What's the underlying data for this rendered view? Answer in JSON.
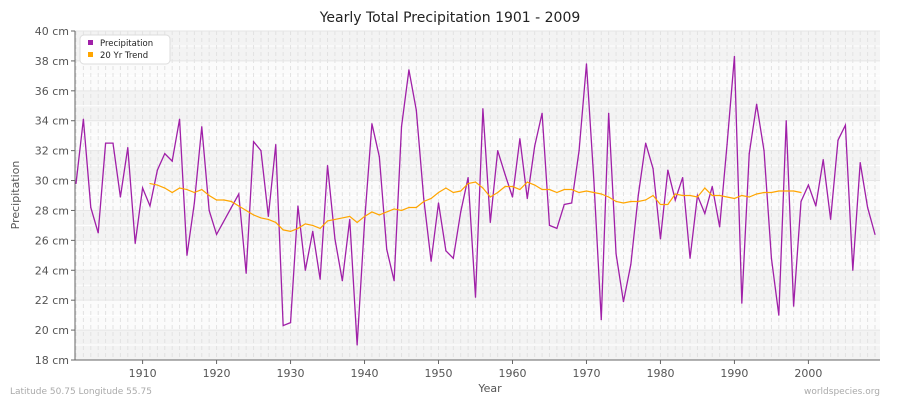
{
  "chart_data": {
    "type": "line",
    "title": "Yearly Total Precipitation 1901 - 2009",
    "xlabel": "Year",
    "ylabel": "Precipitation",
    "ylim": [
      18,
      40
    ],
    "xlim": [
      1901,
      2009
    ],
    "y_ticks": [
      "18 cm",
      "20 cm",
      "22 cm",
      "24 cm",
      "26 cm",
      "28 cm",
      "30 cm",
      "32 cm",
      "34 cm",
      "36 cm",
      "38 cm",
      "40 cm"
    ],
    "x_ticks": [
      "1910",
      "1920",
      "1930",
      "1940",
      "1950",
      "1960",
      "1970",
      "1980",
      "1990",
      "2000"
    ],
    "legend_position": "top-left",
    "series": [
      {
        "name": "Precipitation",
        "color": "#a020a8",
        "start_year": 1901,
        "values": [
          29.8,
          34.1,
          28.2,
          26.5,
          32.5,
          32.5,
          28.9,
          32.2,
          25.8,
          29.5,
          28.3,
          30.7,
          31.8,
          31.3,
          34.1,
          25.0,
          28.5,
          33.6,
          28.0,
          26.4,
          27.3,
          28.2,
          29.1,
          23.8,
          32.6,
          32.0,
          27.6,
          32.4,
          20.3,
          20.5,
          28.3,
          24.0,
          26.6,
          23.4,
          31.0,
          26.1,
          23.3,
          27.4,
          19.0,
          27.2,
          33.8,
          31.6,
          25.4,
          23.3,
          33.6,
          37.4,
          34.7,
          28.8,
          24.6,
          28.5,
          25.3,
          24.8,
          27.9,
          30.2,
          22.2,
          34.8,
          27.2,
          32.0,
          30.4,
          28.9,
          32.8,
          28.8,
          32.3,
          34.5,
          27.0,
          26.8,
          28.4,
          28.5,
          32.0,
          37.8,
          30.0,
          20.7,
          34.5,
          25.1,
          21.9,
          24.4,
          29.0,
          32.5,
          30.8,
          26.1,
          30.7,
          28.7,
          30.2,
          24.8,
          29.0,
          27.8,
          29.6,
          26.9,
          32.4,
          38.3,
          21.8,
          31.8,
          35.1,
          32.0,
          24.8,
          21.0,
          34.0,
          21.6,
          28.6,
          29.7,
          28.3,
          31.4,
          27.4,
          32.7,
          33.7,
          24.0,
          31.2,
          28.2,
          26.4
        ]
      },
      {
        "name": "20 Yr Trend",
        "color": "#ffa500",
        "start_year": 1911,
        "values": [
          29.8,
          29.7,
          29.5,
          29.2,
          29.5,
          29.4,
          29.2,
          29.4,
          29.0,
          28.7,
          28.7,
          28.6,
          28.3,
          28.0,
          27.7,
          27.5,
          27.4,
          27.2,
          26.7,
          26.6,
          26.8,
          27.1,
          27.0,
          26.8,
          27.3,
          27.4,
          27.5,
          27.6,
          27.2,
          27.6,
          27.9,
          27.7,
          27.9,
          28.1,
          28.0,
          28.2,
          28.2,
          28.6,
          28.8,
          29.2,
          29.5,
          29.2,
          29.3,
          29.8,
          29.9,
          29.5,
          28.9,
          29.2,
          29.6,
          29.6,
          29.4,
          29.9,
          29.7,
          29.4,
          29.4,
          29.2,
          29.4,
          29.4,
          29.2,
          29.3,
          29.2,
          29.1,
          28.9,
          28.6,
          28.5,
          28.6,
          28.6,
          28.7,
          29.0,
          28.4,
          28.4,
          29.1,
          29.0,
          29.0,
          28.9,
          29.5,
          29.0,
          29.0,
          28.9,
          28.8,
          29.0,
          28.9,
          29.1,
          29.2,
          29.2,
          29.3,
          29.3,
          29.3,
          29.2
        ]
      }
    ]
  },
  "footer": {
    "location": "Latitude 50.75 Longitude 55.75",
    "site": "worldspecies.org"
  }
}
